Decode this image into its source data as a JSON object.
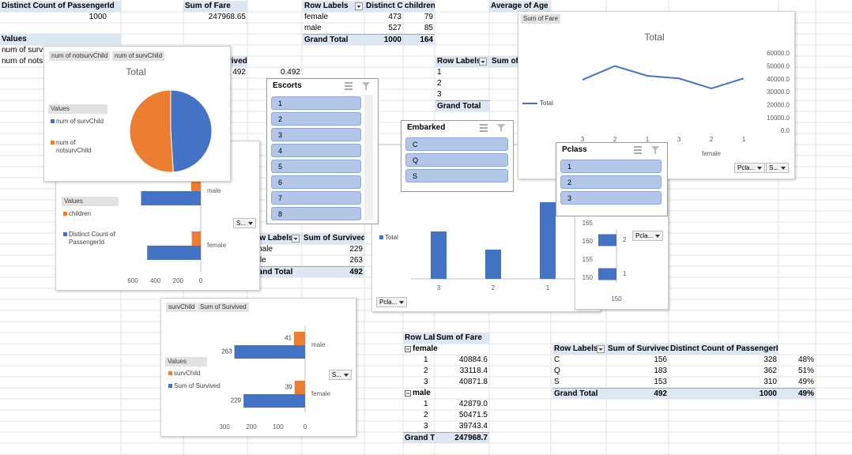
{
  "sheet": {
    "passenger_count": {
      "header": "Distinct Count of PassengerId",
      "value": 1000
    },
    "fare_total": {
      "header": "Sum of Fare",
      "value": 247968.65
    },
    "age_header": "Average of Age",
    "values_block": {
      "header": "Values",
      "rows": [
        "num of survChild",
        "num of notsurvChild"
      ]
    },
    "survived_block": {
      "header": "Sum of Survived",
      "values": [
        492,
        0.492
      ]
    }
  },
  "pivots": {
    "children": {
      "headers": [
        "Row Labels",
        "Distinct Count of PassengerId",
        "children"
      ],
      "rows": [
        [
          "female",
          473,
          79
        ],
        [
          "male",
          527,
          85
        ]
      ],
      "total": [
        "Grand Total",
        1000,
        164
      ]
    },
    "survived": {
      "headers": [
        "Row Labels",
        "Sum of Survived"
      ],
      "rows": [
        [
          "female",
          229
        ],
        [
          "male",
          263
        ]
      ],
      "total": [
        "Grand Total",
        492
      ]
    },
    "pclass": {
      "headers": [
        "Row Labels",
        "Sum of"
      ],
      "rows": [
        [
          "1"
        ],
        [
          "2"
        ],
        [
          "3"
        ]
      ],
      "total": [
        "Grand Total"
      ]
    },
    "fare": {
      "headers": [
        "Row Labels",
        "Sum of Fare"
      ],
      "groups": [
        {
          "name": "female",
          "rows": [
            [
              "1",
              40884.6
            ],
            [
              "2",
              33118.4
            ],
            [
              "3",
              40871.8
            ]
          ]
        },
        {
          "name": "male",
          "rows": [
            [
              "1",
              "42879.0"
            ],
            [
              "2",
              50471.5
            ],
            [
              "3",
              39743.4
            ]
          ]
        }
      ],
      "total": [
        "Grand Total",
        247968.7
      ]
    },
    "embarked": {
      "headers": [
        "Row Labels",
        "Sum of Survived",
        "Distinct Count of PassengerId"
      ],
      "rows": [
        [
          "C",
          156,
          328,
          "48%"
        ],
        [
          "Q",
          183,
          362,
          "51%"
        ],
        [
          "S",
          153,
          310,
          "49%"
        ]
      ],
      "total": [
        "Grand Total",
        492,
        1000,
        "49%"
      ]
    }
  },
  "slicers": [
    {
      "title": "Escorts",
      "items": [
        "1",
        "2",
        "3",
        "4",
        "5",
        "6",
        "7",
        "8"
      ]
    },
    {
      "title": "Embarked",
      "items": [
        "C",
        "Q",
        "S"
      ]
    },
    {
      "title": "Pclass",
      "items": [
        "1",
        "2",
        "3"
      ]
    }
  ],
  "chart_data": [
    {
      "type": "bar",
      "orientation": "horizontal",
      "categories": [
        "female",
        "male"
      ],
      "legend_title": "Values",
      "series": [
        {
          "name": "children",
          "color": "#ed7d31",
          "values": [
            79,
            85
          ]
        },
        {
          "name": "Distinct Count of PassengerId",
          "color": "#4472c4",
          "values": [
            473,
            527
          ]
        }
      ],
      "xlim": [
        0,
        600
      ],
      "xticks": [
        0,
        200,
        400,
        600
      ],
      "x_reversed": true,
      "data_labels": false,
      "filter_buttons": [
        "S..."
      ]
    },
    {
      "type": "pie",
      "title": "Total",
      "field_buttons": [
        "num of notsurvChild",
        "num of survChild"
      ],
      "legend_title": "Values",
      "series": [
        {
          "name": "num of survChild",
          "color": "#4472c4",
          "value": 49
        },
        {
          "name": "num of notsurvChild",
          "color": "#ed7d31",
          "value": 51
        }
      ]
    },
    {
      "type": "column",
      "categories": [
        "3",
        "2",
        "1"
      ],
      "series": [
        {
          "name": "Total",
          "color": "#4472c4",
          "values": [
            60,
            37,
            97
          ]
        }
      ],
      "ylim": [
        0,
        100
      ],
      "filter_buttons": [
        "Pcla..."
      ]
    },
    {
      "type": "bar",
      "orientation": "horizontal",
      "categories": [
        "1",
        "2"
      ],
      "series": [
        {
          "color": "#4472c4",
          "values": [
            155,
            155
          ]
        }
      ],
      "xlim": [
        150,
        160
      ],
      "xticks": [
        150
      ],
      "x_reversed": true,
      "data_labels": false,
      "ylim": [
        150,
        165
      ],
      "yticks": [
        150,
        155,
        160,
        165
      ],
      "filter_buttons": [
        "Pcla..."
      ]
    },
    {
      "type": "line",
      "title": "Total",
      "field_buttons": [
        "Sum of Fare"
      ],
      "categories": [
        "3",
        "2",
        "1",
        "3",
        "2",
        "1"
      ],
      "group_labels": [
        null,
        "female"
      ],
      "series": [
        {
          "name": "Total",
          "color": "#4472c4",
          "values": [
            39743.4,
            50471.5,
            42879.0,
            40871.8,
            33118.4,
            40884.6
          ]
        }
      ],
      "ylim": [
        0,
        60000
      ],
      "yticks": [
        {
          "value": 0,
          "label": "0.0"
        },
        {
          "value": 10000,
          "label": "10000.0"
        },
        {
          "value": 20000,
          "label": "20000.0"
        },
        {
          "value": 30000,
          "label": "30000.0"
        },
        {
          "value": 40000,
          "label": "40000.0"
        },
        {
          "value": 50000,
          "label": "50000.0"
        },
        {
          "value": 60000,
          "label": "60000.0"
        }
      ],
      "filter_buttons": [
        "Pcla...",
        "S..."
      ]
    },
    {
      "type": "bar",
      "orientation": "horizontal",
      "field_buttons": [
        "survChild",
        "Sum of Survived"
      ],
      "categories": [
        "female",
        "male"
      ],
      "legend_title": "Values",
      "series": [
        {
          "name": "survChild",
          "color": "#ed7d31",
          "values": [
            39,
            41
          ]
        },
        {
          "name": "Sum of Survived",
          "color": "#4472c4",
          "values": [
            229,
            263
          ]
        }
      ],
      "xlim": [
        0,
        300
      ],
      "xticks": [
        0,
        100,
        200,
        300
      ],
      "x_reversed": true,
      "data_labels": true,
      "filter_buttons": [
        "S..."
      ]
    }
  ]
}
